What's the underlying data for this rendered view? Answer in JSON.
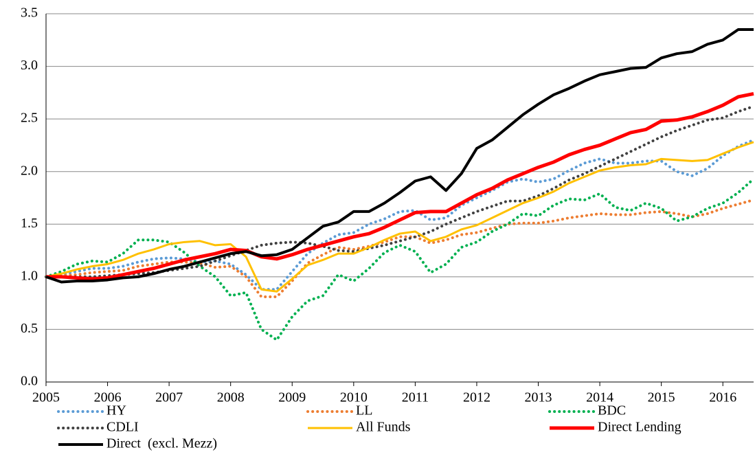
{
  "chart_data": {
    "type": "line",
    "x": [
      2005,
      2005.25,
      2005.5,
      2005.75,
      2006,
      2006.25,
      2006.5,
      2006.75,
      2007,
      2007.25,
      2007.5,
      2007.75,
      2008,
      2008.25,
      2008.5,
      2008.75,
      2009,
      2009.25,
      2009.5,
      2009.75,
      2010,
      2010.25,
      2010.5,
      2010.75,
      2011,
      2011.25,
      2011.5,
      2011.75,
      2012,
      2012.25,
      2012.5,
      2012.75,
      2013,
      2013.25,
      2013.5,
      2013.75,
      2014,
      2014.25,
      2014.5,
      2014.75,
      2015,
      2015.25,
      2015.5,
      2015.75,
      2016,
      2016.25,
      2016.5
    ],
    "xlim": [
      2005,
      2016.5
    ],
    "xticks": [
      2005,
      2006,
      2007,
      2008,
      2009,
      2010,
      2011,
      2012,
      2013,
      2014,
      2015,
      2016
    ],
    "ylim": [
      0,
      3.5
    ],
    "yticks": [
      {
        "value": 0,
        "label": "0.0"
      },
      {
        "value": 0.5,
        "label": "0.5"
      },
      {
        "value": 1,
        "label": "1.0"
      },
      {
        "value": 1.5,
        "label": "1.5"
      },
      {
        "value": 2,
        "label": "2.0"
      },
      {
        "value": 2.5,
        "label": "2.5"
      },
      {
        "value": 3,
        "label": "3.0"
      },
      {
        "value": 3.5,
        "label": "3.5"
      }
    ],
    "grid": true,
    "legend": "bottom",
    "series": [
      {
        "name": "HY",
        "color": "#5b9bd5",
        "dash": "dotted",
        "values": [
          1.0,
          1.02,
          1.05,
          1.08,
          1.08,
          1.1,
          1.14,
          1.17,
          1.18,
          1.17,
          1.14,
          1.15,
          1.12,
          1.02,
          0.88,
          0.88,
          1.05,
          1.22,
          1.32,
          1.4,
          1.42,
          1.5,
          1.55,
          1.62,
          1.63,
          1.54,
          1.56,
          1.68,
          1.75,
          1.82,
          1.9,
          1.93,
          1.9,
          1.93,
          2.01,
          2.08,
          2.12,
          2.08,
          2.08,
          2.1,
          2.1,
          2.0,
          1.96,
          2.03,
          2.15,
          2.24,
          2.3
        ]
      },
      {
        "name": "LL",
        "color": "#ed7d31",
        "dash": "dotted",
        "values": [
          1.0,
          1.01,
          1.02,
          1.04,
          1.05,
          1.06,
          1.1,
          1.12,
          1.14,
          1.14,
          1.13,
          1.09,
          1.1,
          1.0,
          0.81,
          0.81,
          0.96,
          1.13,
          1.21,
          1.28,
          1.26,
          1.29,
          1.33,
          1.38,
          1.38,
          1.32,
          1.35,
          1.4,
          1.42,
          1.46,
          1.5,
          1.51,
          1.51,
          1.53,
          1.56,
          1.58,
          1.6,
          1.59,
          1.59,
          1.61,
          1.62,
          1.6,
          1.57,
          1.6,
          1.65,
          1.69,
          1.73
        ]
      },
      {
        "name": "BDC",
        "color": "#00b050",
        "dash": "dotted",
        "values": [
          1.0,
          1.05,
          1.12,
          1.15,
          1.14,
          1.22,
          1.35,
          1.35,
          1.33,
          1.23,
          1.1,
          1.0,
          0.82,
          0.85,
          0.5,
          0.4,
          0.62,
          0.77,
          0.82,
          1.02,
          0.96,
          1.08,
          1.23,
          1.3,
          1.24,
          1.04,
          1.12,
          1.28,
          1.33,
          1.43,
          1.5,
          1.6,
          1.58,
          1.68,
          1.74,
          1.73,
          1.79,
          1.66,
          1.63,
          1.7,
          1.65,
          1.53,
          1.57,
          1.65,
          1.7,
          1.8,
          1.93
        ]
      },
      {
        "name": "CDLI",
        "color": "#404040",
        "dash": "dotted",
        "values": [
          1.0,
          1.0,
          1.0,
          1.0,
          1.01,
          1.02,
          1.03,
          1.04,
          1.06,
          1.08,
          1.1,
          1.15,
          1.2,
          1.25,
          1.3,
          1.32,
          1.33,
          1.32,
          1.29,
          1.25,
          1.24,
          1.27,
          1.3,
          1.34,
          1.38,
          1.43,
          1.5,
          1.56,
          1.62,
          1.67,
          1.72,
          1.72,
          1.77,
          1.84,
          1.92,
          1.98,
          2.05,
          2.12,
          2.19,
          2.26,
          2.33,
          2.39,
          2.44,
          2.49,
          2.51,
          2.57,
          2.62
        ]
      },
      {
        "name": "All Funds",
        "color": "#ffc000",
        "dash": "solid",
        "width": 3,
        "values": [
          1.0,
          1.03,
          1.07,
          1.1,
          1.12,
          1.16,
          1.22,
          1.26,
          1.31,
          1.33,
          1.34,
          1.3,
          1.31,
          1.19,
          0.88,
          0.86,
          0.98,
          1.11,
          1.16,
          1.22,
          1.22,
          1.28,
          1.35,
          1.41,
          1.43,
          1.34,
          1.38,
          1.45,
          1.49,
          1.56,
          1.63,
          1.7,
          1.75,
          1.81,
          1.89,
          1.95,
          2.01,
          2.04,
          2.06,
          2.07,
          2.12,
          2.11,
          2.1,
          2.11,
          2.17,
          2.23,
          2.28
        ]
      },
      {
        "name": "Direct Lending",
        "color": "#ff0000",
        "dash": "solid",
        "width": 5,
        "values": [
          1.0,
          1.0,
          0.99,
          0.98,
          0.99,
          1.02,
          1.05,
          1.08,
          1.12,
          1.16,
          1.19,
          1.22,
          1.26,
          1.25,
          1.19,
          1.17,
          1.21,
          1.26,
          1.3,
          1.34,
          1.38,
          1.41,
          1.47,
          1.54,
          1.61,
          1.62,
          1.62,
          1.7,
          1.78,
          1.84,
          1.92,
          1.98,
          2.04,
          2.09,
          2.16,
          2.21,
          2.25,
          2.31,
          2.37,
          2.4,
          2.48,
          2.49,
          2.52,
          2.57,
          2.63,
          2.71,
          2.74
        ]
      },
      {
        "name": "Direct  (excl. Mezz)",
        "color": "#000000",
        "dash": "solid",
        "width": 4,
        "values": [
          1.0,
          0.95,
          0.96,
          0.96,
          0.97,
          0.99,
          1.0,
          1.03,
          1.07,
          1.1,
          1.14,
          1.18,
          1.22,
          1.24,
          1.2,
          1.21,
          1.26,
          1.37,
          1.48,
          1.52,
          1.62,
          1.62,
          1.7,
          1.8,
          1.91,
          1.95,
          1.82,
          1.98,
          2.22,
          2.3,
          2.42,
          2.54,
          2.64,
          2.73,
          2.79,
          2.86,
          2.92,
          2.95,
          2.98,
          2.99,
          3.08,
          3.12,
          3.14,
          3.21,
          3.25,
          3.35,
          3.35
        ]
      }
    ]
  }
}
